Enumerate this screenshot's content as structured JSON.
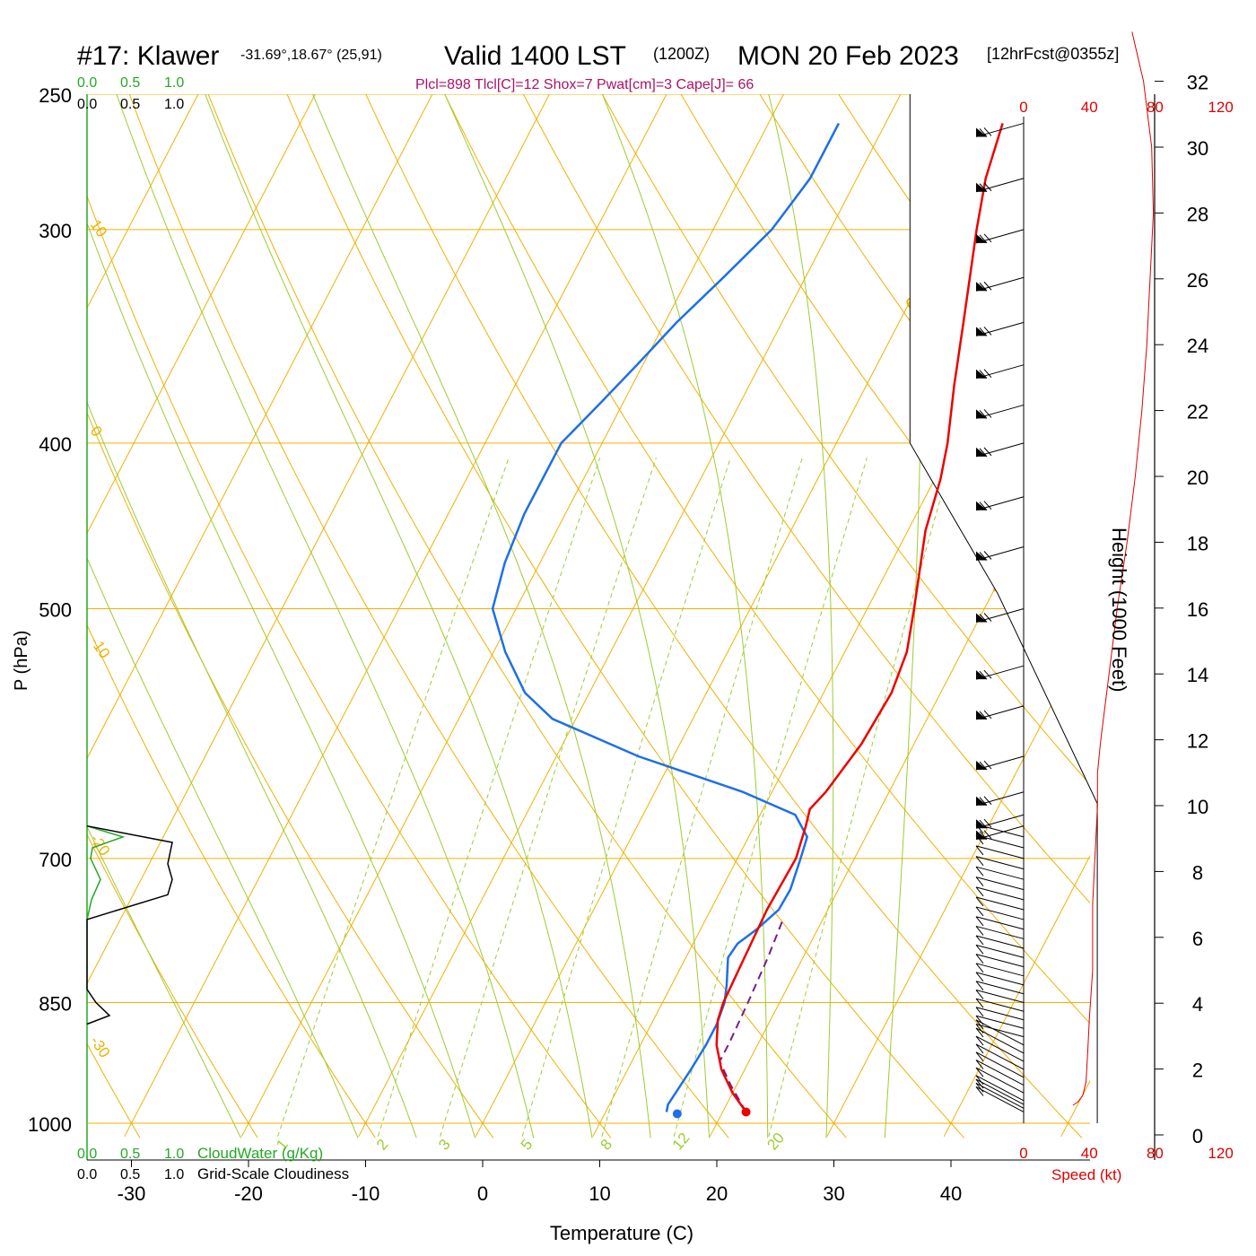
{
  "header": {
    "station": "#17: Klawer",
    "coords": "-31.69°,18.67° (25,91)",
    "valid": "Valid 1400 LST",
    "utc": "(1200Z)",
    "date": "MON 20 Feb 2023",
    "forecast": "[12hrFcst@0355z]",
    "indices": "Plcl=898 Tlcl[C]=12 Shox=7 Pwat[cm]=3 Cape[J]= 66"
  },
  "labels": {
    "xlabel": "Temperature (C)",
    "ylabel": "P (hPa)",
    "height_label": "Height (1000 Feet)",
    "speed_label": "Speed (kt)",
    "cloudwater_legend": "CloudWater (g/Kg)",
    "cloudiness_legend": "Grid-Scale Cloudiness"
  },
  "colors": {
    "temperature": "#ee0000",
    "dewpoint": "#1e6fe8",
    "parcel": "#7a1a8c",
    "isotherm": "#f0b000",
    "dry_adiabat": "#f0b000",
    "moist_adiabat": "#9acd32",
    "mixing_ratio": "#9acd32",
    "cloudwater": "#22aa22",
    "index_text": "#aa1166",
    "speed": "#dd0000"
  },
  "chart_data": {
    "type": "line",
    "chart_kind": "skew-T log-P sounding",
    "x_axis": {
      "ticks": [
        -30,
        -20,
        -10,
        0,
        10,
        20,
        30,
        40
      ],
      "range": [
        -37,
        47
      ]
    },
    "y_axis": {
      "scale": "log",
      "ticks": [
        250,
        300,
        400,
        500,
        700,
        850,
        1000
      ],
      "range": [
        250,
        1018
      ]
    },
    "isotherm_labels": [
      10,
      0,
      -10,
      -20,
      -30
    ],
    "dry_adiabat_labels": [
      0,
      10,
      20,
      30
    ],
    "mixing_ratio_labels": [
      1,
      2,
      3,
      5,
      8,
      12,
      20
    ],
    "temperature": [
      {
        "p": 985,
        "t": 22.0
      },
      {
        "p": 960,
        "t": 20.0
      },
      {
        "p": 930,
        "t": 18.0
      },
      {
        "p": 900,
        "t": 16.5
      },
      {
        "p": 870,
        "t": 15.5
      },
      {
        "p": 850,
        "t": 15.2
      },
      {
        "p": 800,
        "t": 15.0
      },
      {
        "p": 750,
        "t": 14.8
      },
      {
        "p": 700,
        "t": 15.0
      },
      {
        "p": 670,
        "t": 14.4
      },
      {
        "p": 655,
        "t": 14.0
      },
      {
        "p": 640,
        "t": 14.6
      },
      {
        "p": 600,
        "t": 15.5
      },
      {
        "p": 560,
        "t": 15.8
      },
      {
        "p": 530,
        "t": 15.3
      },
      {
        "p": 500,
        "t": 14.0
      },
      {
        "p": 450,
        "t": 11.5
      },
      {
        "p": 420,
        "t": 10.5
      },
      {
        "p": 400,
        "t": 9.5
      },
      {
        "p": 370,
        "t": 7.5
      },
      {
        "p": 340,
        "t": 5.5
      },
      {
        "p": 300,
        "t": 2.5
      },
      {
        "p": 280,
        "t": 1.0
      },
      {
        "p": 260,
        "t": 0.0
      }
    ],
    "dewpoint": [
      {
        "p": 985,
        "t": 15.2
      },
      {
        "p": 975,
        "t": 15.0
      },
      {
        "p": 930,
        "t": 15.4
      },
      {
        "p": 900,
        "t": 15.6
      },
      {
        "p": 875,
        "t": 15.6
      },
      {
        "p": 850,
        "t": 15.3
      },
      {
        "p": 830,
        "t": 14.7
      },
      {
        "p": 800,
        "t": 13.6
      },
      {
        "p": 785,
        "t": 13.8
      },
      {
        "p": 770,
        "t": 14.8
      },
      {
        "p": 750,
        "t": 15.8
      },
      {
        "p": 730,
        "t": 15.9
      },
      {
        "p": 700,
        "t": 15.4
      },
      {
        "p": 680,
        "t": 15.0
      },
      {
        "p": 660,
        "t": 13.0
      },
      {
        "p": 640,
        "t": 7.5
      },
      {
        "p": 610,
        "t": -3.0
      },
      {
        "p": 580,
        "t": -12.0
      },
      {
        "p": 560,
        "t": -15.5
      },
      {
        "p": 530,
        "t": -19.0
      },
      {
        "p": 500,
        "t": -22.0
      },
      {
        "p": 470,
        "t": -23.0
      },
      {
        "p": 440,
        "t": -23.5
      },
      {
        "p": 400,
        "t": -23.5
      },
      {
        "p": 380,
        "t": -22.0
      },
      {
        "p": 360,
        "t": -20.5
      },
      {
        "p": 340,
        "t": -19.0
      },
      {
        "p": 320,
        "t": -17.0
      },
      {
        "p": 300,
        "t": -15.0
      },
      {
        "p": 290,
        "t": -14.5
      },
      {
        "p": 280,
        "t": -14.0
      },
      {
        "p": 260,
        "t": -14.0
      }
    ],
    "parcel": [
      {
        "p": 985,
        "t": 22.0
      },
      {
        "p": 950,
        "t": 19.5
      },
      {
        "p": 920,
        "t": 17.5
      },
      {
        "p": 898,
        "t": 17.5
      },
      {
        "p": 850,
        "t": 17.3
      },
      {
        "p": 800,
        "t": 17.0
      },
      {
        "p": 760,
        "t": 16.6
      }
    ],
    "surface": {
      "p": 985,
      "t": 22.0,
      "td": 15.2
    },
    "cloudwater_axis_ticks": [
      "0.0",
      "0.5",
      "1.0"
    ],
    "cloudwater": [
      {
        "p": 670,
        "v": 0.0
      },
      {
        "p": 680,
        "v": 0.4
      },
      {
        "p": 690,
        "v": 0.06
      },
      {
        "p": 700,
        "v": 0.04
      },
      {
        "p": 720,
        "v": 0.15
      },
      {
        "p": 740,
        "v": 0.05
      },
      {
        "p": 760,
        "v": 0.0
      }
    ],
    "cloudiness": [
      {
        "p": 670,
        "v": 0.0
      },
      {
        "p": 685,
        "v": 0.95
      },
      {
        "p": 705,
        "v": 0.9
      },
      {
        "p": 720,
        "v": 0.95
      },
      {
        "p": 735,
        "v": 0.9
      },
      {
        "p": 760,
        "v": 0.0
      },
      {
        "p": 835,
        "v": 0.0
      },
      {
        "p": 850,
        "v": 0.1
      },
      {
        "p": 865,
        "v": 0.25
      },
      {
        "p": 875,
        "v": 0.0
      }
    ],
    "height_axis": {
      "label_unit": "1000 Feet",
      "ticks": [
        0,
        2,
        4,
        6,
        8,
        10,
        12,
        14,
        16,
        18,
        20,
        22,
        24,
        26,
        28,
        30,
        32
      ]
    },
    "speed_axis": {
      "unit": "kt",
      "ticks": [
        "0",
        "40",
        "80",
        "120"
      ]
    },
    "wind_speed": [
      {
        "h": 0.9,
        "s": 30
      },
      {
        "h": 1.0,
        "s": 33
      },
      {
        "h": 1.2,
        "s": 36
      },
      {
        "h": 1.6,
        "s": 38
      },
      {
        "h": 2.5,
        "s": 39
      },
      {
        "h": 3.5,
        "s": 40
      },
      {
        "h": 5.0,
        "s": 42
      },
      {
        "h": 7.0,
        "s": 42
      },
      {
        "h": 9.0,
        "s": 44
      },
      {
        "h": 10.0,
        "s": 45
      },
      {
        "h": 11.0,
        "s": 45
      },
      {
        "h": 12.0,
        "s": 47
      },
      {
        "h": 14.0,
        "s": 52
      },
      {
        "h": 16.0,
        "s": 57
      },
      {
        "h": 18.0,
        "s": 63
      },
      {
        "h": 20.0,
        "s": 68
      },
      {
        "h": 22.0,
        "s": 72
      },
      {
        "h": 24.0,
        "s": 75
      },
      {
        "h": 26.0,
        "s": 77
      },
      {
        "h": 28.0,
        "s": 79
      },
      {
        "h": 30.0,
        "s": 78
      },
      {
        "h": 32.0,
        "s": 73
      },
      {
        "h": 33.5,
        "s": 66
      }
    ],
    "wind_barb_pressures": [
      260,
      280,
      300,
      320,
      340,
      360,
      380,
      400,
      430,
      460,
      500,
      540,
      570,
      610,
      640,
      660,
      670,
      680,
      690,
      700,
      710,
      720,
      730,
      740,
      750,
      760,
      770,
      780,
      790,
      800,
      810,
      820,
      830,
      840,
      850,
      860,
      870,
      880,
      890,
      900,
      910,
      920,
      930,
      940,
      950,
      960,
      970,
      975,
      980,
      985
    ],
    "background_region_boundary": [
      {
        "p": 250,
        "t": 36.5
      },
      {
        "p": 400,
        "t": 36.5
      },
      {
        "p": 490,
        "t": 44.0
      },
      {
        "p": 650,
        "t": 52.5
      },
      {
        "p": 1000,
        "t": 52.5
      }
    ]
  }
}
